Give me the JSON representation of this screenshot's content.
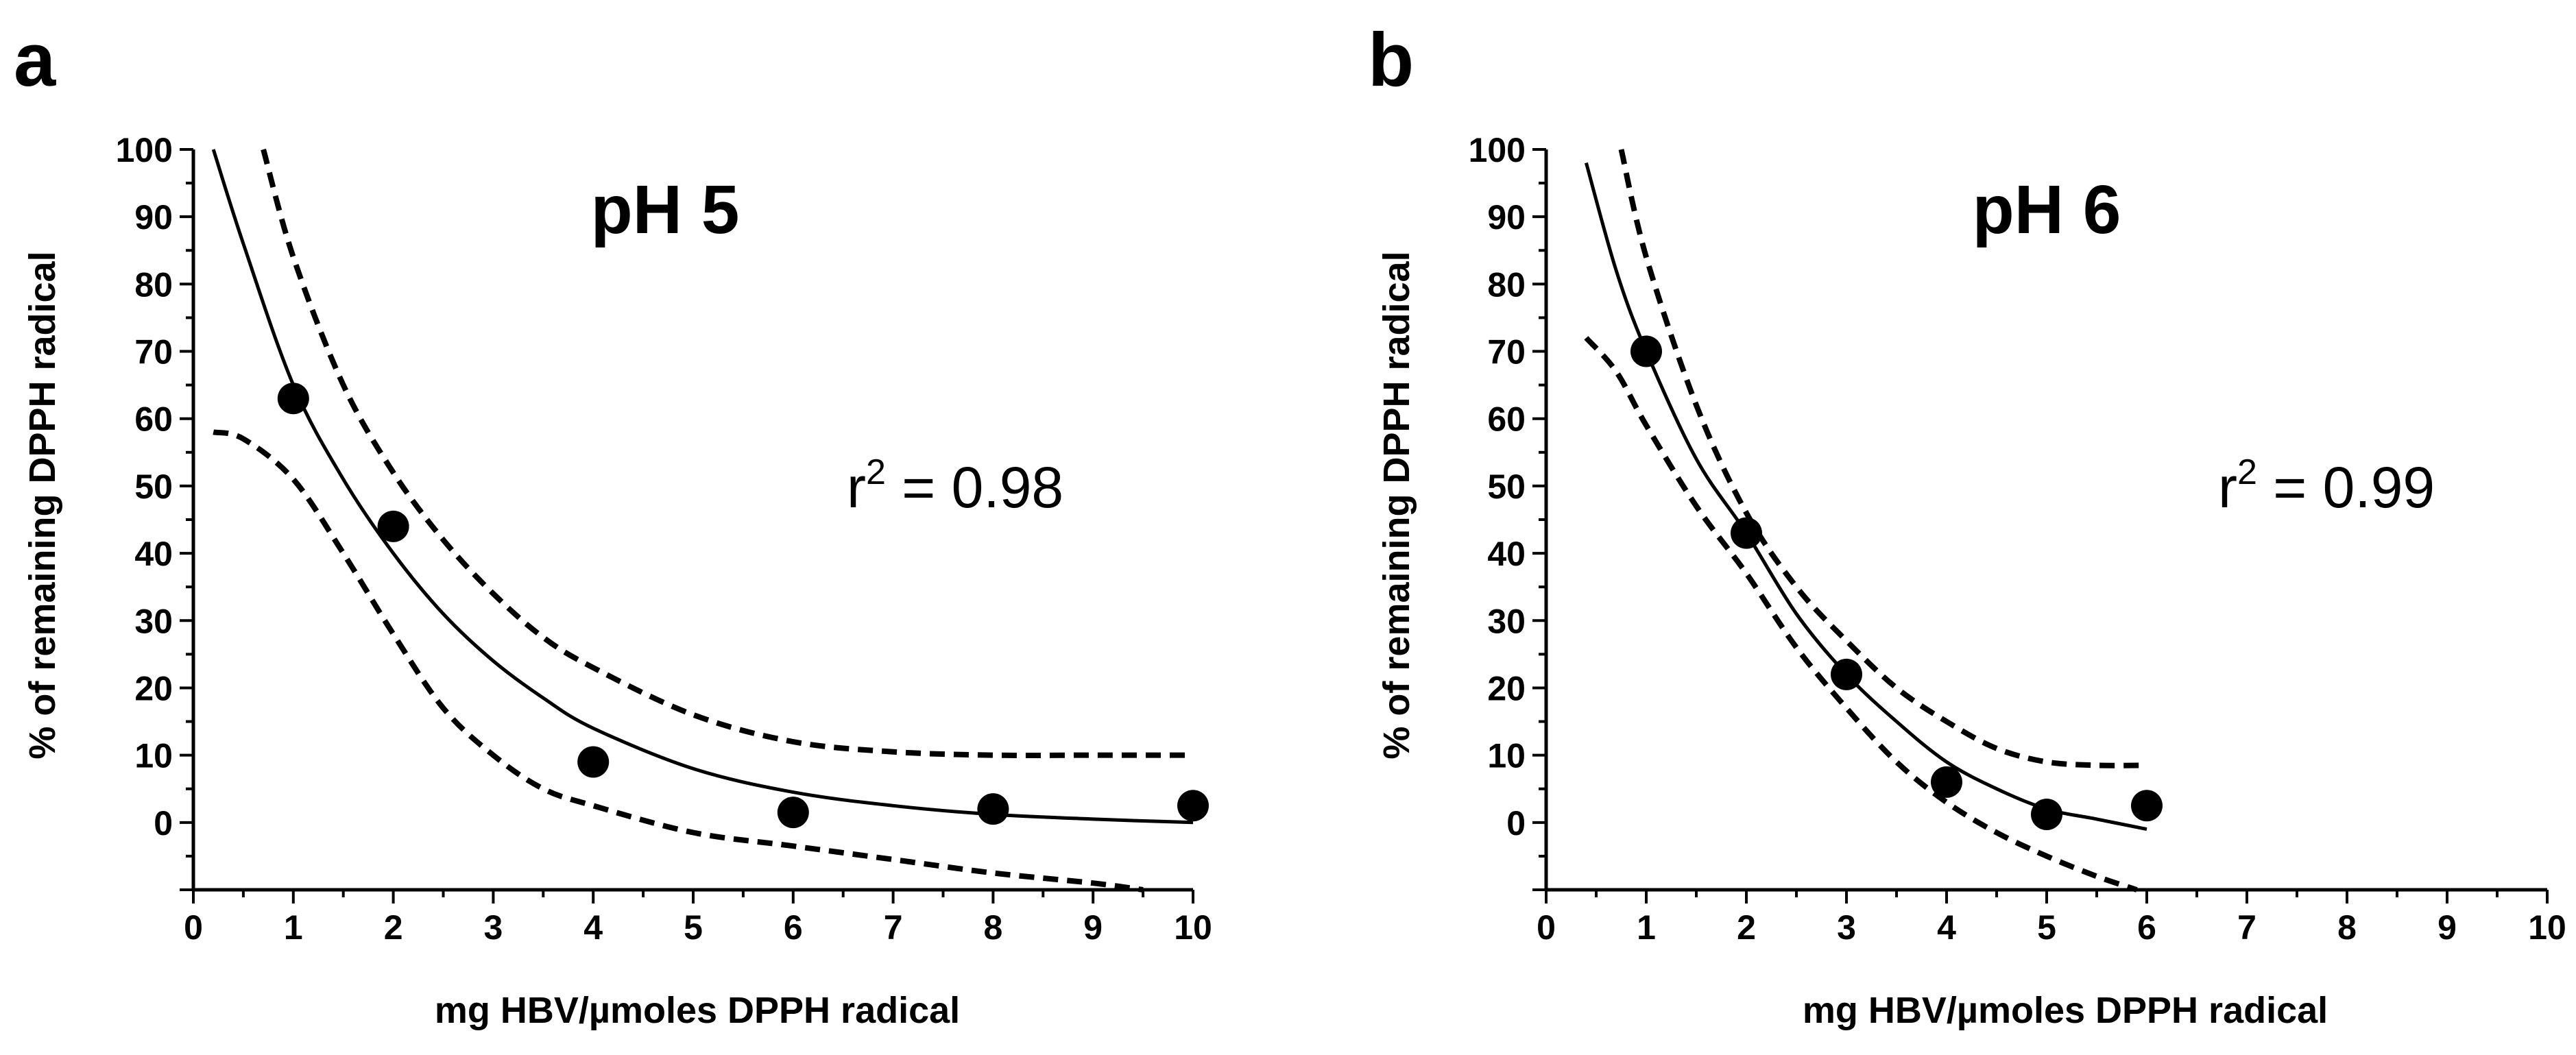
{
  "chart_data": [
    {
      "panel_label": "a",
      "type": "scatter",
      "title": "pH 5",
      "xlabel": "mg HBV/µmoles DPPH radical",
      "ylabel": "% of remaining DPPH radical",
      "xlim": [
        0,
        10
      ],
      "ylim": [
        -10,
        100
      ],
      "xticks": [
        "0",
        "1",
        "2",
        "3",
        "4",
        "5",
        "6",
        "7",
        "8",
        "9",
        "10"
      ],
      "yticks": [
        "0",
        "10",
        "20",
        "30",
        "40",
        "50",
        "60",
        "70",
        "80",
        "90",
        "100"
      ],
      "annotation": {
        "prefix": "r",
        "exponent": "2",
        "suffix": " = 0.98"
      },
      "points": {
        "x": [
          1,
          2,
          4,
          6,
          8,
          10
        ],
        "y": [
          63,
          44,
          9,
          1.5,
          2,
          2.5
        ]
      },
      "fit": {
        "x": [
          0.2,
          0.5,
          1,
          1.5,
          2,
          2.5,
          3,
          3.5,
          4,
          5,
          6,
          7,
          8,
          9,
          10
        ],
        "y": [
          100,
          86,
          65,
          51,
          40,
          31,
          24,
          18.5,
          14,
          8,
          4.5,
          2.5,
          1.2,
          0.5,
          0
        ]
      },
      "ci_upper": {
        "x": [
          0.7,
          1,
          1.5,
          2,
          2.5,
          3,
          3.5,
          4,
          5,
          6,
          7,
          8,
          9,
          10
        ],
        "y": [
          100,
          84,
          65,
          52,
          42,
          34,
          27.5,
          23,
          16,
          12,
          10.5,
          10,
          10,
          10
        ]
      },
      "ci_lower": {
        "x": [
          0.2,
          0.5,
          1,
          1.5,
          2,
          2.5,
          3,
          3.5,
          4,
          5,
          6,
          7,
          8,
          9,
          9.5
        ],
        "y": [
          58,
          57,
          51,
          40,
          28,
          17,
          10,
          5,
          2.5,
          -1.5,
          -3.5,
          -5.5,
          -7.5,
          -9,
          -10
        ]
      }
    },
    {
      "panel_label": "b",
      "type": "scatter",
      "title": "pH 6",
      "xlabel": "mg HBV/µmoles DPPH radical",
      "ylabel": "% of remaining DPPH radical",
      "xlim": [
        0,
        10
      ],
      "ylim": [
        -10,
        100
      ],
      "xticks": [
        "0",
        "1",
        "2",
        "3",
        "4",
        "5",
        "6",
        "7",
        "8",
        "9",
        "10"
      ],
      "yticks": [
        "0",
        "10",
        "20",
        "30",
        "40",
        "50",
        "60",
        "70",
        "80",
        "90",
        "100"
      ],
      "annotation": {
        "prefix": "r",
        "exponent": "2",
        "suffix": " = 0.99"
      },
      "points": {
        "x": [
          1,
          2,
          3,
          4,
          5,
          6
        ],
        "y": [
          70,
          43,
          22,
          6,
          1.2,
          2.5
        ]
      },
      "fit": {
        "x": [
          0.4,
          0.7,
          1,
          1.5,
          2,
          2.5,
          3,
          3.5,
          4,
          4.5,
          5,
          5.5,
          6
        ],
        "y": [
          98,
          82,
          70,
          54,
          43,
          31,
          22,
          15,
          9,
          5,
          2,
          0.5,
          -1
        ]
      },
      "ci_upper": {
        "x": [
          0.75,
          1,
          1.5,
          2,
          2.5,
          3,
          3.5,
          4,
          4.5,
          5,
          5.5,
          6
        ],
        "y": [
          100,
          84,
          62,
          46,
          35,
          27,
          20,
          15,
          11,
          9,
          8.5,
          8.5
        ]
      },
      "ci_lower": {
        "x": [
          0.4,
          0.7,
          1,
          1.5,
          2,
          2.5,
          3,
          3.5,
          4,
          4.5,
          5,
          5.5,
          5.9
        ],
        "y": [
          72,
          67,
          59,
          47,
          37,
          26,
          17,
          9,
          3,
          -1.5,
          -5,
          -8,
          -10
        ]
      }
    }
  ]
}
